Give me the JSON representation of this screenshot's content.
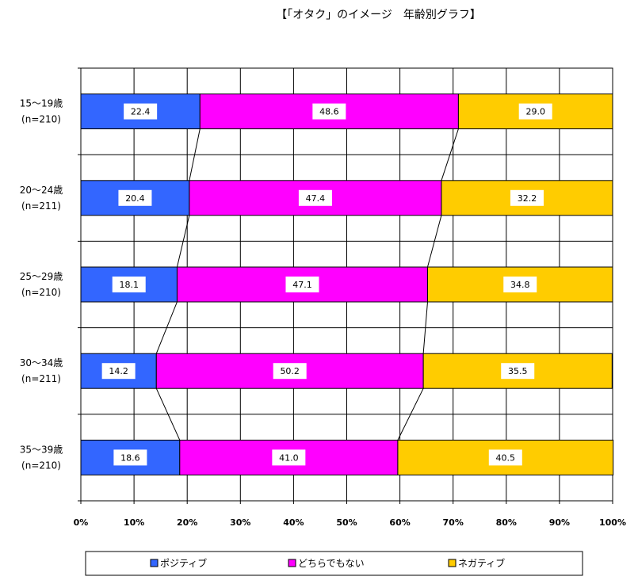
{
  "chart_data": {
    "type": "bar",
    "orientation": "horizontal",
    "stacked": true,
    "title": "【「オタク」のイメージ　年齢別グラフ】",
    "categories": [
      [
        "15～19歳",
        "(n=210)"
      ],
      [
        "20～24歳",
        "(n=211)"
      ],
      [
        "25～29歳",
        "(n=210)"
      ],
      [
        "30～34歳",
        "(n=211)"
      ],
      [
        "35～39歳",
        "(n=210)"
      ]
    ],
    "series": [
      {
        "name": "ポジティブ",
        "color": "#3366FF",
        "values": [
          22.4,
          20.4,
          18.1,
          14.2,
          18.6
        ]
      },
      {
        "name": "どちらでもない",
        "color": "#FF00FF",
        "values": [
          48.6,
          47.4,
          47.1,
          50.2,
          41.0
        ]
      },
      {
        "name": "ネガティブ",
        "color": "#FFCC00",
        "values": [
          29.0,
          32.2,
          34.8,
          35.5,
          40.5
        ]
      }
    ],
    "xlim": [
      0,
      100
    ],
    "x_ticks": [
      "0%",
      "10%",
      "20%",
      "30%",
      "40%",
      "50%",
      "60%",
      "70%",
      "80%",
      "90%",
      "100%"
    ],
    "grid": true,
    "series_lines": true,
    "legend_position": "bottom"
  }
}
